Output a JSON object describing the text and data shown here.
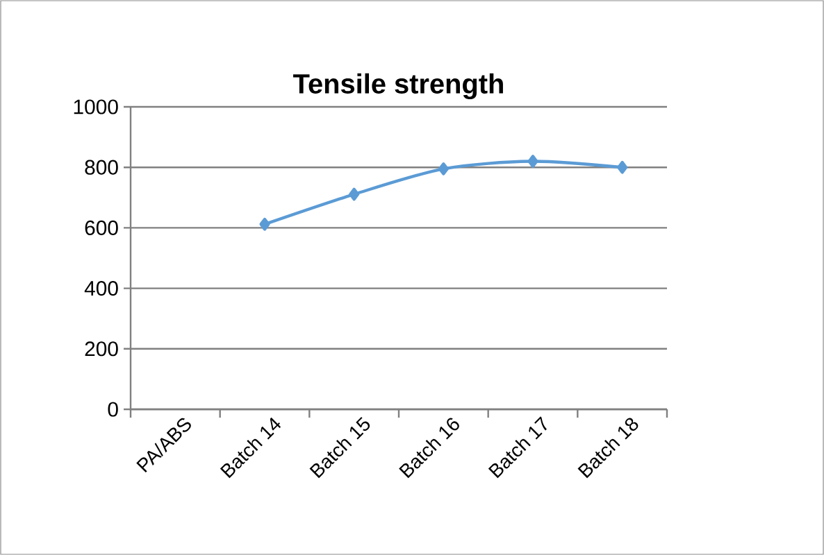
{
  "chart_data": {
    "type": "line",
    "title": "Tensile strength",
    "categories": [
      "PA/ABS",
      "Batch 14",
      "Batch 15",
      "Batch 16",
      "Batch 17",
      "Batch 18"
    ],
    "series": [
      {
        "color": "#5b9bd5",
        "values": [
          null,
          612,
          711,
          795,
          820,
          800
        ]
      }
    ],
    "ylim": [
      0,
      1000
    ],
    "yticks": [
      0,
      200,
      400,
      600,
      800,
      1000
    ],
    "grid": "y",
    "marker": "diamond",
    "line_style": "solid"
  }
}
